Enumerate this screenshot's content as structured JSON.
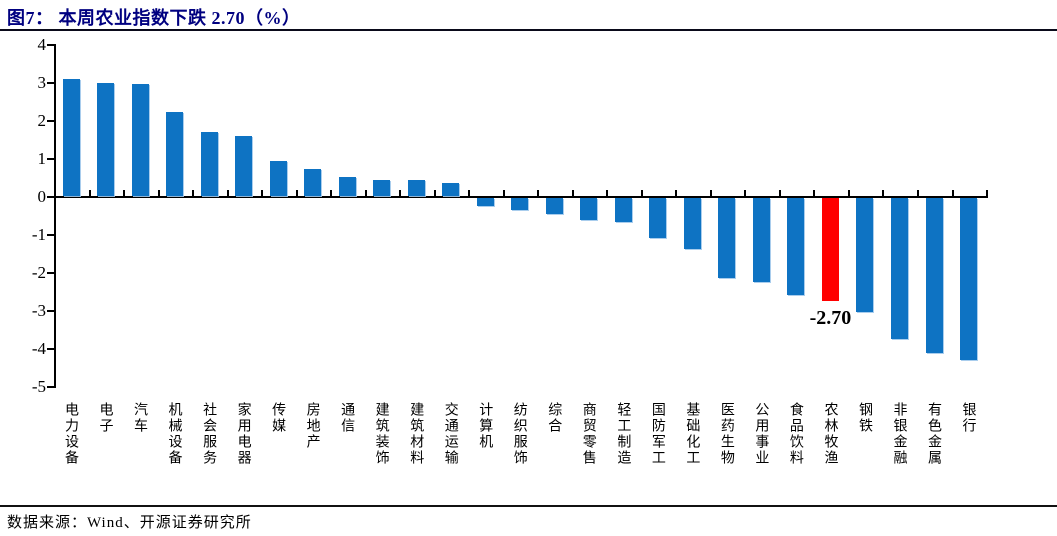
{
  "header": {
    "title": "图7： 本周农业指数下跌 2.70（%）"
  },
  "footer": {
    "source_label": "数据来源：Wind、开源证券研究所"
  },
  "colors": {
    "bar_default": "#0E73C3",
    "bar_highlight": "#FF0000",
    "title_text": "#000080",
    "axis": "#000000"
  },
  "chart_data": {
    "type": "bar",
    "title": "本周农业指数下跌 2.70（%）",
    "xlabel": "",
    "ylabel": "",
    "ylim": [
      -5,
      4
    ],
    "yticks": [
      4,
      3,
      2,
      1,
      0,
      -1,
      -2,
      -3,
      -4,
      -5
    ],
    "grid": false,
    "legend": null,
    "categories": [
      "电力设备",
      "电子",
      "汽车",
      "机械设备",
      "社会服务",
      "家用电器",
      "传媒",
      "房地产",
      "通信",
      "建筑装饰",
      "建筑材料",
      "交通运输",
      "计算机",
      "纺织服饰",
      "综合",
      "商贸零售",
      "轻工制造",
      "国防军工",
      "基础化工",
      "医药生物",
      "公用事业",
      "食品饮料",
      "农林牧渔",
      "钢铁",
      "非银金融",
      "有色金属",
      "银行"
    ],
    "values": [
      3.08,
      2.98,
      2.96,
      2.22,
      1.69,
      1.58,
      0.91,
      0.7,
      0.5,
      0.43,
      0.41,
      0.35,
      -0.21,
      -0.31,
      -0.42,
      -0.57,
      -0.63,
      -1.05,
      -1.35,
      -2.1,
      -2.2,
      -2.55,
      -2.7,
      -3.0,
      -3.72,
      -4.08,
      -4.25
    ],
    "highlight": {
      "index": 22,
      "category": "农林牧渔",
      "value": -2.7,
      "color": "#FF0000"
    },
    "annotation": {
      "text": "-2.70",
      "category": "农林牧渔"
    }
  }
}
